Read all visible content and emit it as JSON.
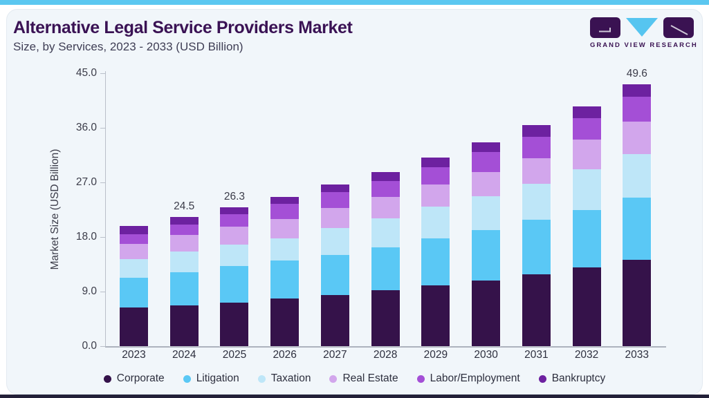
{
  "page": {
    "top_accent_color": "#5BC7F0",
    "card_bg": "#F1F6FA",
    "bottom_bar_color": "#232038"
  },
  "header": {
    "title": "Alternative Legal Service Providers Market",
    "subtitle": "Size, by Services, 2023 - 2033 (USD Billion)",
    "title_color": "#3A1254",
    "logo": {
      "brand": "GRAND VIEW RESEARCH",
      "icon": "grand-view-research-logo",
      "brand_color": "#3A1252",
      "triangle_color": "#56C5F0"
    }
  },
  "chart_data": {
    "type": "bar",
    "stacked": true,
    "title": "Alternative Legal Service Providers Market Size, by Services, 2023 - 2033 (USD Billion)",
    "categories": [
      "2023",
      "2024",
      "2025",
      "2026",
      "2027",
      "2028",
      "2029",
      "2030",
      "2031",
      "2032",
      "2033"
    ],
    "series": [
      {
        "name": "Corporate",
        "color": "#35124A",
        "values": [
          7.3,
          7.7,
          8.2,
          9.0,
          9.7,
          10.6,
          11.5,
          12.4,
          13.6,
          14.9,
          16.3
        ]
      },
      {
        "name": "Litigation",
        "color": "#5AC8F5",
        "values": [
          5.6,
          6.3,
          6.9,
          7.2,
          7.6,
          8.1,
          8.9,
          9.5,
          10.3,
          10.9,
          11.8
        ]
      },
      {
        "name": "Taxation",
        "color": "#BEE6F8",
        "values": [
          3.6,
          3.9,
          4.1,
          4.2,
          5.0,
          5.5,
          6.0,
          6.4,
          6.8,
          7.6,
          8.3
        ]
      },
      {
        "name": "Real Estate",
        "color": "#D2A6EC",
        "values": [
          2.9,
          3.1,
          3.4,
          3.7,
          3.8,
          4.0,
          4.2,
          4.7,
          4.9,
          5.7,
          6.1
        ]
      },
      {
        "name": "Labor/Employment",
        "color": "#A44FD6",
        "values": [
          1.8,
          2.0,
          2.4,
          2.8,
          3.0,
          3.1,
          3.3,
          3.7,
          4.0,
          4.1,
          4.7
        ]
      },
      {
        "name": "Bankruptcy",
        "color": "#6D21A0",
        "values": [
          1.5,
          1.5,
          1.3,
          1.4,
          1.5,
          1.7,
          1.8,
          1.9,
          2.2,
          2.2,
          2.4
        ]
      }
    ],
    "totals": [
      22.7,
      24.5,
      26.3,
      28.3,
      30.6,
      33.0,
      35.7,
      38.6,
      41.8,
      45.4,
      49.6
    ],
    "visible_total_labels": [
      {
        "category": "2024",
        "label": "24.5"
      },
      {
        "category": "2025",
        "label": "26.3"
      },
      {
        "category": "2033",
        "label": "49.6"
      }
    ],
    "ylabel": "Market Size (USD Billion)",
    "y_ticks": [
      "45.0",
      "36.0",
      "27.0",
      "18.0",
      "9.0",
      "0.0"
    ],
    "ylim": [
      0,
      45
    ],
    "grid": false,
    "legend_position": "bottom"
  }
}
